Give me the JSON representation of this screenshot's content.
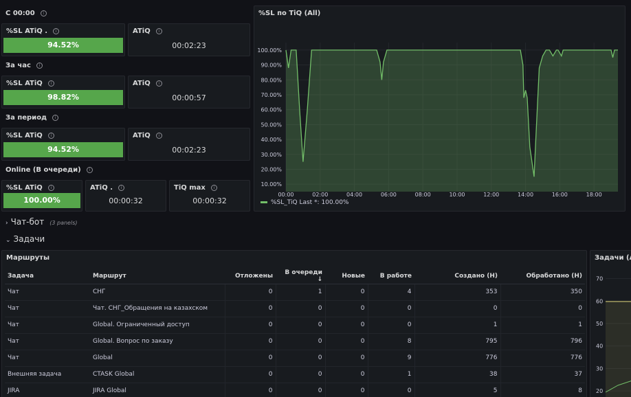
{
  "sections": {
    "s1": "С 00:00",
    "s2": "За час",
    "s3": "За период",
    "s4": "Online (В очереди)"
  },
  "stats": {
    "r1": {
      "sl_title": "%SL ATiQ .",
      "sl_value": "94.52%",
      "atiq_title": "ATiQ",
      "atiq_value": "00:02:23"
    },
    "r2": {
      "sl_title": "%SL ATiQ",
      "sl_value": "98.82%",
      "atiq_title": "ATiQ",
      "atiq_value": "00:00:57"
    },
    "r3": {
      "sl_title": "%SL ATiQ",
      "sl_value": "94.52%",
      "atiq_title": "ATiQ",
      "atiq_value": "00:02:23"
    },
    "r4": {
      "sl_title": "%SL ATiQ",
      "sl_value": "100.00%",
      "atiq_title": "ATiQ .",
      "atiq_value": "00:00:32",
      "tiqmax_title": "TiQ max",
      "tiqmax_value": "00:00:32"
    }
  },
  "colors": {
    "ok": "#56a64b",
    "panel": "#181b1f",
    "line": "#73bf69",
    "yellow": "#e0d77a"
  },
  "chart_title": "%SL по TiQ (All)",
  "chart_legend": "%SL_TiQ  Last *: 100.00%",
  "rows": {
    "chatbot": {
      "label": "Чат-бот",
      "note": "(3 panels)"
    },
    "tasks": {
      "label": "Задачи"
    }
  },
  "routes": {
    "title": "Маршруты",
    "columns": [
      "Задача",
      "Маршрут",
      "Отложены",
      "В очереди ↓",
      "Новые",
      "В работе",
      "Создано (H)",
      "Обработано (H)"
    ],
    "rows": [
      [
        "Чат",
        "СНГ",
        "0",
        "1",
        "0",
        "4",
        "353",
        "350"
      ],
      [
        "Чат",
        "Чат. СНГ_Обращения на казахском",
        "0",
        "0",
        "0",
        "0",
        "0",
        "0"
      ],
      [
        "Чат",
        "Global. Ограниченный доступ",
        "0",
        "0",
        "0",
        "0",
        "1",
        "1"
      ],
      [
        "Чат",
        "Global. Вопрос по заказу",
        "0",
        "0",
        "0",
        "8",
        "795",
        "796"
      ],
      [
        "Чат",
        "Global",
        "0",
        "0",
        "0",
        "9",
        "776",
        "776"
      ],
      [
        "Внешняя задача",
        "CTASK Global",
        "0",
        "0",
        "0",
        "1",
        "38",
        "37"
      ],
      [
        "JIRA",
        "JIRA Global",
        "0",
        "0",
        "0",
        "0",
        "5",
        "8"
      ]
    ]
  },
  "tasks_panel_title": "Задачи (All)",
  "chart_data": [
    {
      "type": "area",
      "title": "%SL по TiQ (All)",
      "y_ticks": [
        "10.00%",
        "20.00%",
        "30.00%",
        "40.00%",
        "50.00%",
        "60.00%",
        "70.00%",
        "80.00%",
        "90.00%",
        "100.00%"
      ],
      "x_ticks": [
        "00:00",
        "02:00",
        "04:00",
        "06:00",
        "08:00",
        "10:00",
        "12:00",
        "14:00",
        "16:00",
        "18:00"
      ],
      "ylim": [
        5,
        105
      ],
      "xlim": [
        0,
        19.4
      ],
      "series": [
        {
          "name": "%SL_TiQ",
          "x": [
            0,
            0.15,
            0.3,
            0.45,
            0.6,
            0.8,
            1.0,
            1.25,
            1.5,
            1.7,
            1.9,
            2.1,
            2.3,
            3.0,
            4.0,
            5.0,
            5.3,
            5.5,
            5.6,
            5.7,
            5.9,
            6.2,
            8.0,
            10.0,
            12.0,
            13.5,
            13.7,
            13.85,
            13.9,
            14.0,
            14.1,
            14.25,
            14.5,
            14.6,
            14.8,
            15.0,
            15.2,
            15.4,
            15.6,
            15.8,
            15.9,
            16.1,
            16.2,
            16.4,
            16.7,
            17.0,
            18.0,
            19.0,
            19.1,
            19.2,
            19.4
          ],
          "y": [
            100,
            88,
            100,
            100,
            100,
            60,
            25,
            60,
            100,
            100,
            100,
            100,
            100,
            100,
            100,
            100,
            100,
            92,
            80,
            92,
            100,
            100,
            100,
            100,
            100,
            100,
            100,
            90,
            68,
            73,
            68,
            35,
            15,
            40,
            88,
            96,
            100,
            100,
            96,
            100,
            100,
            96,
            100,
            100,
            100,
            100,
            100,
            100,
            95,
            100,
            100
          ]
        }
      ]
    },
    {
      "type": "line",
      "title": "Задачи (All)",
      "y_ticks": [
        "20",
        "30",
        "40",
        "50",
        "60",
        "70"
      ],
      "ylim": [
        17,
        72
      ]
    }
  ]
}
